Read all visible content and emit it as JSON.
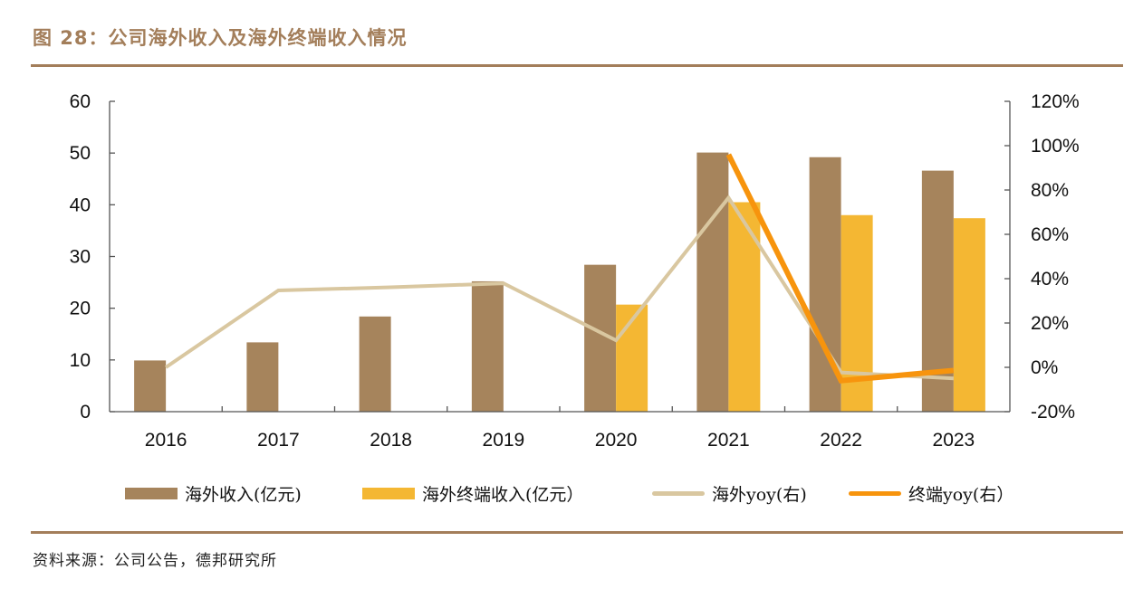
{
  "header": {
    "title": "图 28：公司海外收入及海外终端收入情况"
  },
  "footer": {
    "source": "资料来源：公司公告，德邦研究所"
  },
  "colors": {
    "accent": "#a37e5a",
    "overseas_revenue": "#a6845c",
    "overseas_terminal_revenue": "#f4b733",
    "overseas_yoy": "#d9c7a0",
    "terminal_yoy": "#f7940d"
  },
  "chart_data": {
    "type": "bar",
    "title": "公司海外收入及海外终端收入情况",
    "categories": [
      "2016",
      "2017",
      "2018",
      "2019",
      "2020",
      "2021",
      "2022",
      "2023"
    ],
    "xlabel": "",
    "ylabel": "",
    "left_axis": {
      "ylim": [
        0,
        60
      ],
      "ticks": [
        0,
        10,
        20,
        30,
        40,
        50,
        60
      ],
      "tick_labels": [
        "0",
        "10",
        "20",
        "30",
        "40",
        "50",
        "60"
      ]
    },
    "right_axis": {
      "ylim": [
        -20,
        120
      ],
      "ticks": [
        -20,
        0,
        20,
        40,
        60,
        80,
        100,
        120
      ],
      "tick_labels": [
        "-20%",
        "0%",
        "20%",
        "40%",
        "60%",
        "80%",
        "100%",
        "120%"
      ]
    },
    "grid": false,
    "legend_position": "bottom",
    "series": [
      {
        "name": "海外收入(亿元)",
        "type": "bar",
        "axis": "left",
        "color": "#a6845c",
        "values": [
          9.9,
          13.4,
          18.4,
          25.2,
          28.4,
          50.1,
          49.2,
          46.6
        ]
      },
      {
        "name": "海外终端收入(亿元）",
        "type": "bar",
        "axis": "left",
        "color": "#f4b733",
        "values": [
          null,
          null,
          null,
          null,
          20.7,
          40.5,
          38.0,
          37.4
        ]
      },
      {
        "name": "海外yoy(右)",
        "type": "line",
        "axis": "right",
        "color": "#d9c7a0",
        "values": [
          0,
          34.7,
          36.1,
          37.9,
          12.2,
          76.5,
          -2.3,
          -5.0
        ]
      },
      {
        "name": "终端yoy(右）",
        "type": "line",
        "axis": "right",
        "color": "#f7940d",
        "values": [
          null,
          null,
          null,
          null,
          null,
          96.0,
          -6.0,
          -1.4
        ]
      }
    ]
  }
}
